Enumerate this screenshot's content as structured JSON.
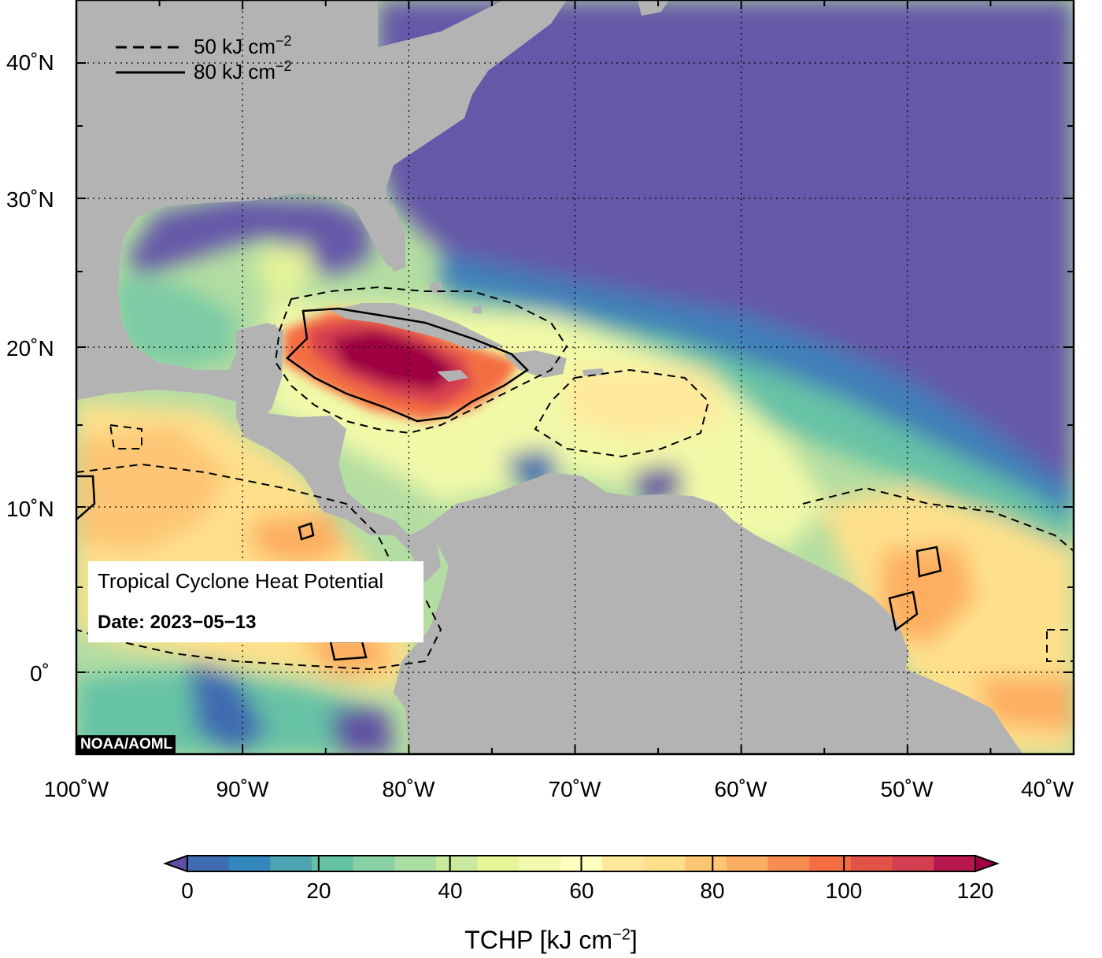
{
  "map": {
    "lat_ticks": [
      "40˚N",
      "30˚N",
      "20˚N",
      "10˚N",
      "0˚"
    ],
    "lon_ticks": [
      "100˚W",
      "90˚W",
      "80˚W",
      "70˚W",
      "60˚W",
      "50˚W",
      "40˚W"
    ],
    "extent": {
      "lon_min": -100,
      "lon_max": -40,
      "lat_min": -5,
      "lat_max": 45
    },
    "gridlines": "dotted",
    "land_color": "#b3b3b3",
    "cold_color": "#6559a8"
  },
  "legend": {
    "dashed_label": "50 kJ cm",
    "solid_label": "80 kJ cm",
    "exponent": "−2"
  },
  "info": {
    "title": "Tropical Cyclone Heat Potential",
    "date": "Date: 2023−05−13"
  },
  "credit": "NOAA/AOML",
  "colorbar": {
    "ticks": [
      "0",
      "20",
      "40",
      "60",
      "80",
      "100",
      "120"
    ],
    "title_prefix": "TCHP [kJ cm",
    "title_exponent": "−2",
    "title_suffix": "]",
    "colors": [
      "#5e4fa2",
      "#3f6bb0",
      "#3288bd",
      "#4ea4b3",
      "#66c2a5",
      "#89d0a4",
      "#abdda4",
      "#c9e99e",
      "#e6f598",
      "#f3fab0",
      "#ffffbf",
      "#fee89b",
      "#fee08b",
      "#fdc574",
      "#fdae61",
      "#f88d52",
      "#f46d43",
      "#e25248",
      "#d53e4f",
      "#b7164f",
      "#9e0142"
    ],
    "min": 0,
    "max": 120
  }
}
